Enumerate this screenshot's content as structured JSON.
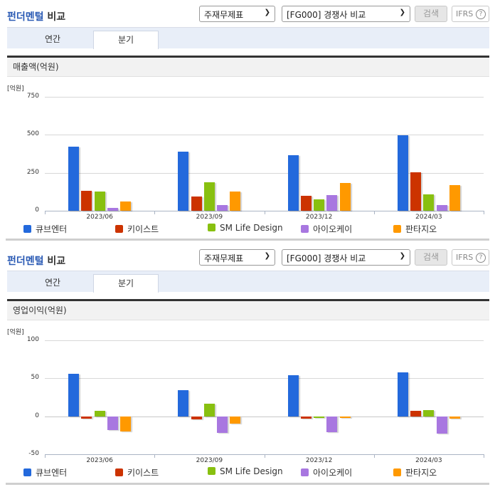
{
  "colors": {
    "series": [
      "#2369dc",
      "#cc3300",
      "#88c010",
      "#a877e0",
      "#ff9900"
    ],
    "accent": "#2a5ab4"
  },
  "sections": [
    {
      "title_accent": "펀더멘털",
      "title_rest": " 비교",
      "select1": "주재무제표",
      "select2": "[FG000] 경쟁사 비교",
      "search_label": "검색",
      "ifrs_label": "IFRS",
      "help_icon": "?",
      "tabs": [
        {
          "label": "연간"
        },
        {
          "label": "분기"
        }
      ],
      "active_tab": 1,
      "panel_title": "매출액(억원)",
      "unit": "[억원]"
    },
    {
      "title_accent": "펀더멘털",
      "title_rest": " 비교",
      "select1": "주재무제표",
      "select2": "[FG000] 경쟁사 비교",
      "search_label": "검색",
      "ifrs_label": "IFRS",
      "help_icon": "?",
      "tabs": [
        {
          "label": "연간"
        },
        {
          "label": "분기"
        }
      ],
      "active_tab": 1,
      "panel_title": "영업이익(억원)",
      "unit": "[억원]"
    }
  ],
  "chart_data": [
    {
      "type": "bar",
      "title": "매출액(억원)",
      "ylabel": "[억원]",
      "xlabel": "",
      "categories": [
        "2023/06",
        "2023/09",
        "2023/12",
        "2024/03"
      ],
      "yticks": [
        0,
        250,
        500,
        750
      ],
      "ylim": [
        0,
        750
      ],
      "grid": true,
      "legend_position": "bottom",
      "series": [
        {
          "name": "큐브엔터",
          "values": [
            422,
            389,
            366,
            497
          ]
        },
        {
          "name": "키이스트",
          "values": [
            131,
            94,
            98,
            253
          ]
        },
        {
          "name": "SM Life Design",
          "values": [
            127,
            187,
            75,
            108
          ]
        },
        {
          "name": "아이오케이",
          "values": [
            19,
            38,
            103,
            38
          ]
        },
        {
          "name": "판타지오",
          "values": [
            61,
            127,
            183,
            169
          ]
        }
      ]
    },
    {
      "type": "bar",
      "title": "영업이익(억원)",
      "ylabel": "[억원]",
      "xlabel": "",
      "categories": [
        "2023/06",
        "2023/09",
        "2023/12",
        "2024/03"
      ],
      "yticks": [
        -50,
        0,
        50,
        100
      ],
      "ylim": [
        -50,
        100
      ],
      "grid": true,
      "legend_position": "bottom",
      "series": [
        {
          "name": "큐브엔터",
          "values": [
            56,
            34,
            54,
            58
          ]
        },
        {
          "name": "키이스트",
          "values": [
            -3,
            -4,
            -3,
            7
          ]
        },
        {
          "name": "SM Life Design",
          "values": [
            7,
            17,
            0,
            8
          ]
        },
        {
          "name": "아이오케이",
          "values": [
            -18,
            -22,
            -21,
            -23
          ]
        },
        {
          "name": "판타지오",
          "values": [
            -20,
            -10,
            -2,
            -3
          ]
        }
      ]
    }
  ]
}
